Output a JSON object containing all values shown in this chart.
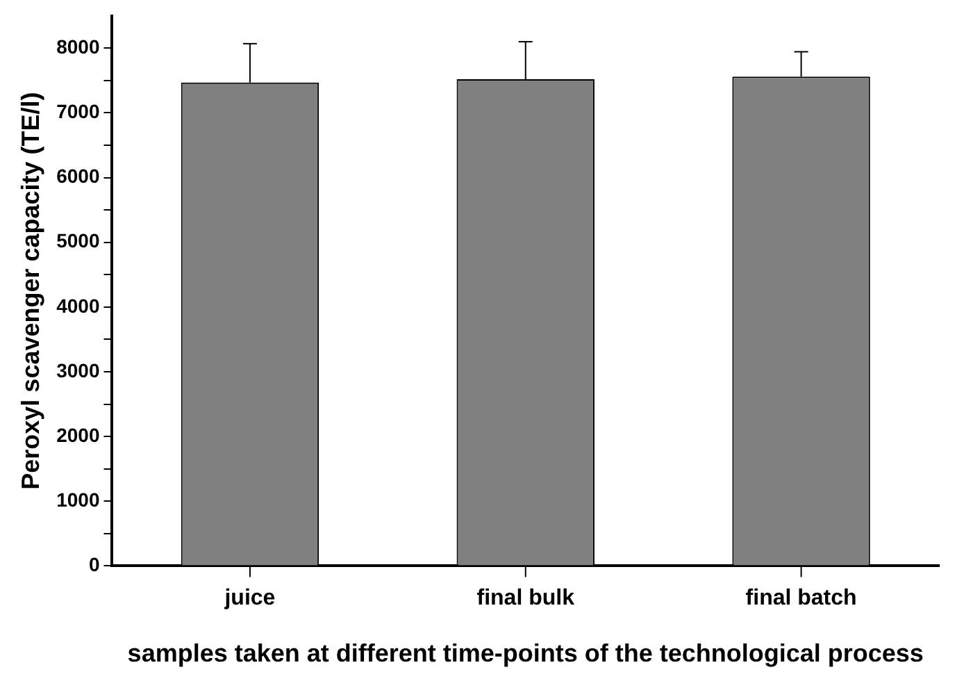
{
  "chart_data": {
    "type": "bar",
    "xlabel": "samples taken at different time-points of the technological process",
    "ylabel": "Peroxyl scavenger capacity (TE/l)",
    "categories": [
      "juice",
      "final bulk",
      "final batch"
    ],
    "values": [
      7470,
      7520,
      7560
    ],
    "errors": [
      [
        7470,
        8070
      ],
      [
        7520,
        8100
      ],
      [
        7560,
        7945
      ]
    ],
    "color": "#808080",
    "ylim": [
      0,
      8500
    ],
    "yticks": [
      0,
      {
        "value": 500,
        "label": null
      },
      1000,
      {
        "value": 1500,
        "label": null
      },
      2000,
      {
        "value": 2500,
        "label": null
      },
      3000,
      {
        "value": 3500,
        "label": null
      },
      4000,
      {
        "value": 4500,
        "label": null
      },
      5000,
      {
        "value": 5500,
        "label": null
      },
      6000,
      {
        "value": 6500,
        "label": null
      },
      7000,
      {
        "value": 7500,
        "label": null
      },
      8000
    ],
    "grid": false,
    "legend": false
  }
}
